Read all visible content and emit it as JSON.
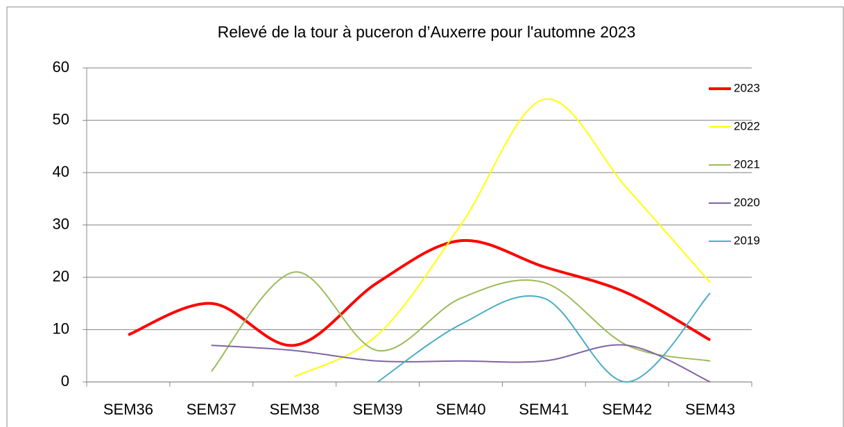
{
  "chart_data": {
    "type": "line",
    "title": "Relevé de la tour à puceron d’Auxerre pour l'automne 2023",
    "categories": [
      "SEM36",
      "SEM37",
      "SEM38",
      "SEM39",
      "SEM40",
      "SEM41",
      "SEM42",
      "SEM43"
    ],
    "series": [
      {
        "name": "2023",
        "color": "#ff0000",
        "values": [
          9,
          15,
          7,
          19,
          27,
          22,
          17,
          8
        ]
      },
      {
        "name": "2022",
        "color": "#ffff00",
        "values": [
          null,
          null,
          1,
          9,
          30,
          54,
          37,
          19
        ]
      },
      {
        "name": "2021",
        "color": "#9bbb59",
        "values": [
          null,
          2,
          21,
          6,
          16,
          19,
          7,
          4
        ]
      },
      {
        "name": "2020",
        "color": "#8064a2",
        "values": [
          null,
          7,
          6,
          4,
          4,
          4,
          7,
          0
        ]
      },
      {
        "name": "2019",
        "color": "#4bacc6",
        "values": [
          null,
          null,
          null,
          0,
          11,
          16,
          0,
          17
        ]
      }
    ],
    "ylim": [
      0,
      60
    ],
    "yticks": [
      0,
      10,
      20,
      30,
      40,
      50,
      60
    ],
    "grid": true,
    "smooth": true,
    "legend": "right"
  }
}
